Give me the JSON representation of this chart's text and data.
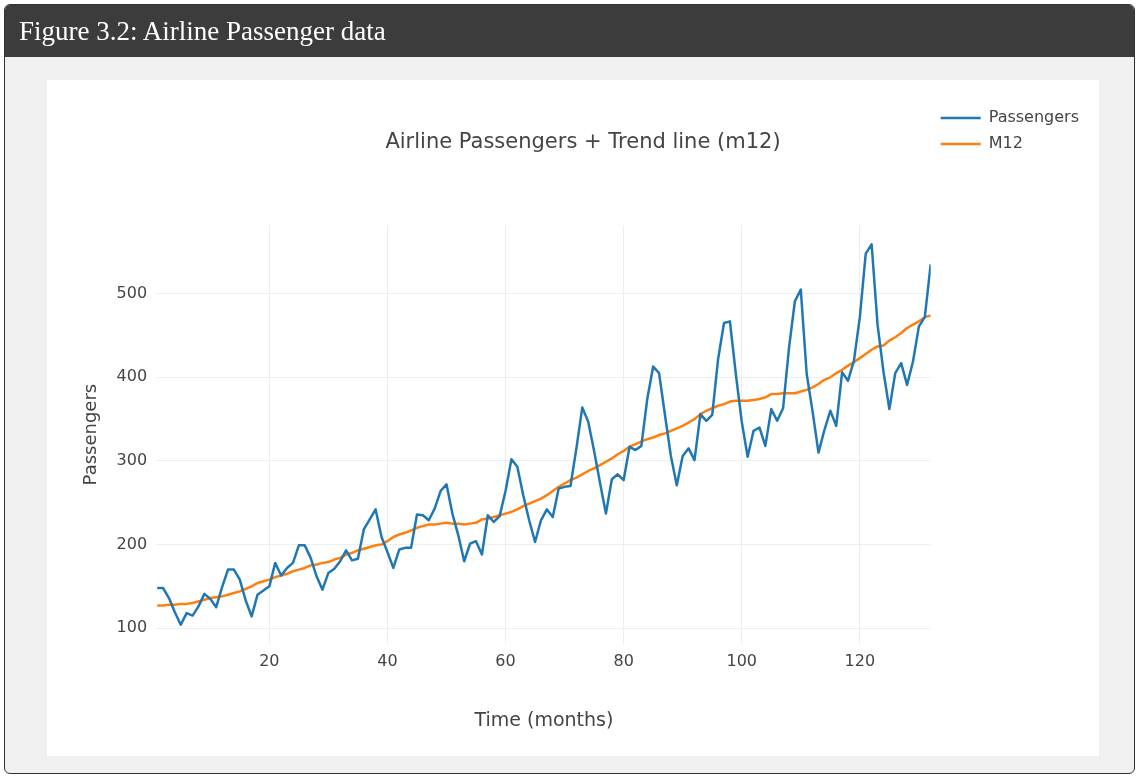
{
  "chart_data": {
    "type": "line",
    "title": "Airline Passengers + Trend line (m12)",
    "xlabel": "Time (months)",
    "ylabel": "Passengers",
    "annotations": [
      "Figure 3.2: Airline Passenger data"
    ],
    "x": [
      1,
      2,
      3,
      4,
      5,
      6,
      7,
      8,
      9,
      10,
      11,
      12,
      13,
      14,
      15,
      16,
      17,
      18,
      19,
      20,
      21,
      22,
      23,
      24,
      25,
      26,
      27,
      28,
      29,
      30,
      31,
      32,
      33,
      34,
      35,
      36,
      37,
      38,
      39,
      40,
      41,
      42,
      43,
      44,
      45,
      46,
      47,
      48,
      49,
      50,
      51,
      52,
      53,
      54,
      55,
      56,
      57,
      58,
      59,
      60,
      61,
      62,
      63,
      64,
      65,
      66,
      67,
      68,
      69,
      70,
      71,
      72,
      73,
      74,
      75,
      76,
      77,
      78,
      79,
      80,
      81,
      82,
      83,
      84,
      85,
      86,
      87,
      88,
      89,
      90,
      91,
      92,
      93,
      94,
      95,
      96,
      97,
      98,
      99,
      100,
      101,
      102,
      103,
      104,
      105,
      106,
      107,
      108,
      109,
      110,
      111,
      112,
      113,
      114,
      115,
      116,
      117,
      118,
      119,
      120,
      121,
      122,
      123,
      124,
      125,
      126,
      127,
      128,
      129,
      130,
      131,
      132
    ],
    "series": [
      {
        "name": "Passengers",
        "color": "#1f77b4",
        "values": [
          148,
          148,
          136,
          119,
          104,
          118,
          115,
          126,
          141,
          135,
          125,
          149,
          170,
          170,
          158,
          133,
          114,
          140,
          145,
          150,
          178,
          163,
          172,
          178,
          199,
          199,
          184,
          162,
          146,
          166,
          171,
          180,
          193,
          181,
          183,
          218,
          230,
          242,
          209,
          191,
          172,
          194,
          196,
          196,
          236,
          235,
          229,
          243,
          264,
          272,
          237,
          211,
          180,
          201,
          204,
          188,
          235,
          227,
          234,
          264,
          302,
          293,
          259,
          229,
          203,
          229,
          242,
          233,
          267,
          269,
          270,
          315,
          364,
          347,
          312,
          274,
          237,
          278,
          284,
          277,
          317,
          313,
          318,
          374,
          413,
          405,
          355,
          306,
          271,
          306,
          315,
          301,
          356,
          348,
          355,
          422,
          465,
          467,
          404,
          347,
          305,
          336,
          340,
          318,
          362,
          348,
          363,
          435,
          491,
          505,
          404,
          359,
          310,
          337,
          360,
          342,
          406,
          396,
          420,
          472,
          548,
          559,
          463,
          407,
          362,
          405,
          417,
          391,
          419,
          461,
          472,
          535
        ]
      },
      {
        "name": "M12",
        "color": "#ff7f0e",
        "values": [
          127,
          127,
          128,
          128,
          129,
          129,
          130,
          132,
          134,
          136,
          137,
          138,
          140,
          142,
          144,
          147,
          150,
          154,
          156,
          158,
          161,
          163,
          165,
          168,
          170,
          172,
          175,
          176,
          178,
          179,
          182,
          184,
          188,
          190,
          193,
          195,
          197,
          199,
          200,
          204,
          209,
          212,
          214,
          217,
          220,
          222,
          224,
          224,
          225,
          226,
          225,
          225,
          224,
          225,
          226,
          230,
          231,
          233,
          235,
          237,
          239,
          242,
          246,
          249,
          252,
          255,
          259,
          264,
          269,
          273,
          277,
          280,
          284,
          288,
          291,
          295,
          299,
          303,
          308,
          312,
          317,
          320,
          323,
          326,
          328,
          331,
          333,
          336,
          339,
          342,
          346,
          350,
          356,
          360,
          363,
          366,
          368,
          371,
          372,
          372,
          372,
          373,
          374,
          376,
          380,
          380,
          381,
          381,
          381,
          383,
          385,
          388,
          392,
          397,
          400,
          405,
          409,
          414,
          418,
          423,
          428,
          433,
          437,
          438,
          444,
          448,
          453,
          459,
          463,
          467,
          472,
          474
        ]
      }
    ],
    "xlim": [
      1,
      132
    ],
    "ylim": [
      81,
      582
    ],
    "xticks": [
      20,
      40,
      60,
      80,
      100,
      120
    ],
    "yticks": [
      100,
      200,
      300,
      400,
      500
    ],
    "grid": true,
    "legend": "top right"
  }
}
